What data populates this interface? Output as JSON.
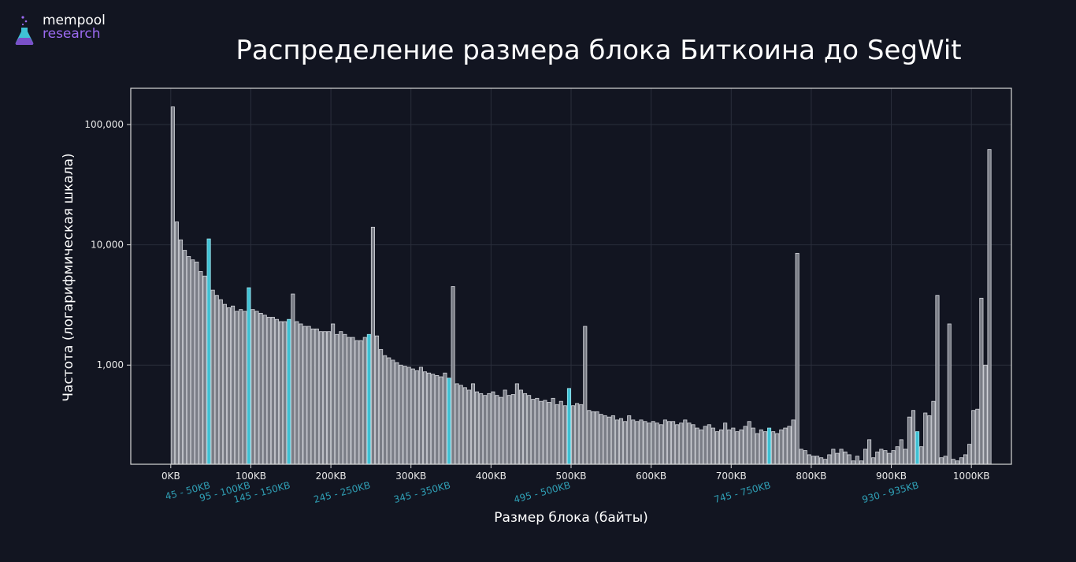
{
  "brand": {
    "line1": "mempool",
    "line2": "research",
    "accent": "#9b6af0"
  },
  "chart_data": {
    "type": "bar",
    "title": "Распределение размера блока Биткоина до SegWit",
    "xlabel": "Размер блока (байты)",
    "ylabel": "Частота (логарифмическая шкала)",
    "yscale": "log",
    "ylim": [
      150,
      200000
    ],
    "xlim_kb": [
      -50,
      1050
    ],
    "bin_width_kb": 5,
    "x_ticks": [
      {
        "kb": 0,
        "label": "0KB"
      },
      {
        "kb": 100,
        "label": "100KB"
      },
      {
        "kb": 200,
        "label": "200KB"
      },
      {
        "kb": 300,
        "label": "300KB"
      },
      {
        "kb": 400,
        "label": "400KB"
      },
      {
        "kb": 500,
        "label": "500KB"
      },
      {
        "kb": 600,
        "label": "600KB"
      },
      {
        "kb": 700,
        "label": "700KB"
      },
      {
        "kb": 800,
        "label": "800KB"
      },
      {
        "kb": 900,
        "label": "900KB"
      },
      {
        "kb": 1000,
        "label": "1000KB"
      }
    ],
    "y_ticks": [
      {
        "value": 1000,
        "label": "1,000"
      },
      {
        "value": 10000,
        "label": "10,000"
      },
      {
        "value": 100000,
        "label": "100,000"
      }
    ],
    "highlight_color": "#3fc1d4",
    "bar_color": "#7a7d86",
    "highlights": [
      {
        "start_kb": 45,
        "label": "45 - 50KB"
      },
      {
        "start_kb": 95,
        "label": "95 - 100KB"
      },
      {
        "start_kb": 145,
        "label": "145 - 150KB"
      },
      {
        "start_kb": 245,
        "label": "245 - 250KB"
      },
      {
        "start_kb": 345,
        "label": "345 - 350KB"
      },
      {
        "start_kb": 495,
        "label": "495 - 500KB"
      },
      {
        "start_kb": 745,
        "label": "745 - 750KB"
      },
      {
        "start_kb": 930,
        "label": "930 - 935KB"
      }
    ],
    "values": [
      140000,
      15500,
      11000,
      9000,
      8000,
      7500,
      7200,
      6000,
      5500,
      11200,
      4200,
      3800,
      3500,
      3200,
      3000,
      3100,
      2800,
      2900,
      2800,
      4400,
      2900,
      2800,
      2700,
      2600,
      2500,
      2500,
      2400,
      2300,
      2300,
      2400,
      3900,
      2300,
      2200,
      2100,
      2100,
      2000,
      2000,
      1900,
      1900,
      1900,
      2200,
      1800,
      1900,
      1800,
      1700,
      1700,
      1600,
      1600,
      1700,
      1800,
      14000,
      1750,
      1350,
      1200,
      1150,
      1100,
      1050,
      1000,
      980,
      960,
      930,
      900,
      960,
      880,
      860,
      840,
      820,
      800,
      860,
      780,
      4500,
      700,
      680,
      650,
      620,
      700,
      600,
      580,
      560,
      580,
      600,
      560,
      540,
      620,
      560,
      570,
      700,
      620,
      580,
      560,
      520,
      530,
      500,
      510,
      490,
      530,
      470,
      500,
      460,
      640,
      460,
      480,
      470,
      2100,
      420,
      410,
      410,
      390,
      380,
      370,
      380,
      350,
      360,
      340,
      380,
      350,
      340,
      350,
      340,
      330,
      340,
      330,
      320,
      350,
      340,
      340,
      320,
      330,
      350,
      330,
      320,
      300,
      290,
      310,
      320,
      300,
      280,
      290,
      330,
      290,
      300,
      280,
      290,
      310,
      340,
      300,
      270,
      290,
      280,
      300,
      280,
      270,
      290,
      300,
      310,
      350,
      8500,
      200,
      195,
      180,
      175,
      175,
      170,
      165,
      180,
      200,
      185,
      200,
      190,
      180,
      160,
      175,
      160,
      200,
      240,
      170,
      190,
      200,
      195,
      185,
      195,
      210,
      240,
      200,
      370,
      420,
      280,
      210,
      400,
      380,
      500,
      3800,
      170,
      175,
      2200,
      165,
      160,
      170,
      180,
      220,
      420,
      430,
      3600,
      1000,
      62000
    ]
  }
}
